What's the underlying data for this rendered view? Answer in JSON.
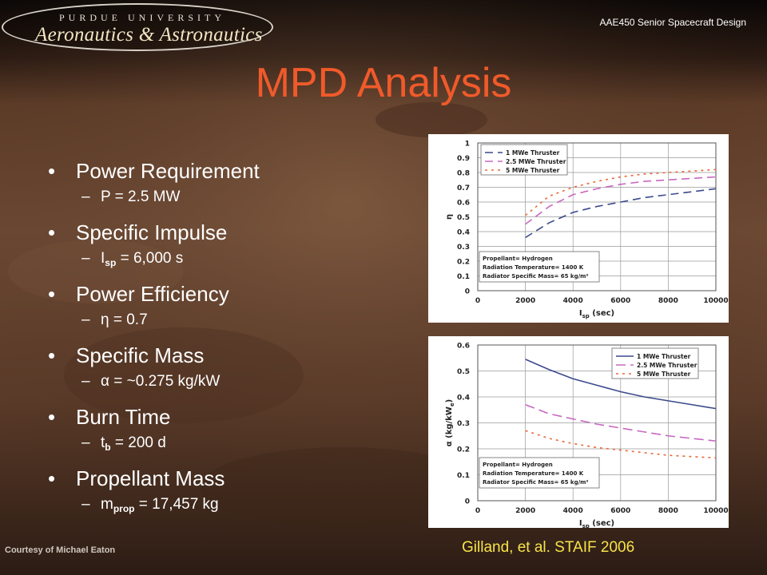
{
  "header": {
    "logo_top": "PURDUE UNIVERSITY",
    "logo_main": "Aeronautics & Astronautics",
    "course": "AAE450 Senior Spacecraft Design"
  },
  "title": "MPD Analysis",
  "bullets": {
    "power_req": "Power Requirement",
    "power_val": "P = 2.5 MW",
    "isp_label": "Specific Impulse",
    "isp_sym": "I",
    "isp_sub": "sp",
    "isp_val": " = 6,000 s",
    "eff_label": "Power Efficiency",
    "eff_val": "η = 0.7",
    "mass_label": "Specific Mass",
    "mass_val": "α = ~0.275 kg/kW",
    "burn_label": "Burn Time",
    "burn_sym": "t",
    "burn_sub": "b",
    "burn_val": " = 200 d",
    "prop_label": "Propellant Mass",
    "prop_sym": "m",
    "prop_sub": "prop",
    "prop_val": " = 17,457 kg"
  },
  "caption": "Gilland, et al. STAIF 2006",
  "courtesy": "Courtesy of Michael Eaton",
  "colors": {
    "title": "#f05a2a",
    "caption": "#f7e34a",
    "s1": "#3c4a8c",
    "s2": "#c868c0",
    "s3": "#e86a38"
  },
  "chart_data": [
    {
      "type": "line",
      "xlabel": "I",
      "xlabel_sub": "sp",
      "xlabel_unit": " (sec)",
      "ylabel": "η",
      "xlim": [
        0,
        10000
      ],
      "ylim": [
        0,
        1
      ],
      "xticks": [
        "0",
        "2000",
        "4000",
        "6000",
        "8000",
        "10000"
      ],
      "yticks": [
        "0",
        "0.1",
        "0.2",
        "0.3",
        "0.4",
        "0.5",
        "0.6",
        "0.7",
        "0.8",
        "0.9",
        "1"
      ],
      "grid": true,
      "legend_position": "top-left",
      "note": [
        "Propellant= Hydrogen",
        "Radiation Temperature= 1400 K",
        "Radiator Specific Mass= 65 kg/m²"
      ],
      "series": [
        {
          "name": "1 MWe Thruster",
          "color": "#3c4a8c",
          "dash": "10,6",
          "x": [
            2000,
            3000,
            4000,
            5000,
            6000,
            7000,
            8000,
            9000,
            10000
          ],
          "y": [
            0.36,
            0.46,
            0.53,
            0.57,
            0.6,
            0.63,
            0.65,
            0.67,
            0.69
          ]
        },
        {
          "name": "2.5 MWe Thruster",
          "color": "#c868c0",
          "dash": "10,6",
          "x": [
            2000,
            3000,
            4000,
            5000,
            6000,
            7000,
            8000,
            9000,
            10000
          ],
          "y": [
            0.45,
            0.57,
            0.65,
            0.69,
            0.72,
            0.74,
            0.75,
            0.76,
            0.77
          ]
        },
        {
          "name": "5 MWe Thruster",
          "color": "#e86a38",
          "dash": "3,5",
          "x": [
            2000,
            3000,
            4000,
            5000,
            6000,
            7000,
            8000,
            9000,
            10000
          ],
          "y": [
            0.51,
            0.64,
            0.7,
            0.74,
            0.77,
            0.79,
            0.8,
            0.81,
            0.82
          ]
        }
      ]
    },
    {
      "type": "line",
      "xlabel": "I",
      "xlabel_sub": "sp",
      "xlabel_unit": " (sec)",
      "ylabel": "α (kg/kW",
      "ylabel_sub": "e",
      "ylabel_end": ")",
      "xlim": [
        0,
        10000
      ],
      "ylim": [
        0,
        0.6
      ],
      "xticks": [
        "0",
        "2000",
        "4000",
        "6000",
        "8000",
        "10000"
      ],
      "yticks": [
        "0",
        "0.1",
        "0.2",
        "0.3",
        "0.4",
        "0.5",
        "0.6"
      ],
      "grid": true,
      "legend_position": "top-right",
      "note": [
        "Propellant= Hydrogen",
        "Radiation Temperature= 1400 K",
        "Radiator Specific Mass= 65 kg/m²"
      ],
      "series": [
        {
          "name": "1 MWe Thruster",
          "color": "#3c4a8c",
          "dash": "",
          "x": [
            2000,
            3000,
            4000,
            5000,
            6000,
            7000,
            8000,
            9000,
            10000
          ],
          "y": [
            0.545,
            0.505,
            0.47,
            0.445,
            0.42,
            0.4,
            0.385,
            0.37,
            0.355
          ]
        },
        {
          "name": "2.5 MWe Thruster",
          "color": "#c868c0",
          "dash": "12,6",
          "x": [
            2000,
            3000,
            4000,
            5000,
            6000,
            7000,
            8000,
            9000,
            10000
          ],
          "y": [
            0.37,
            0.335,
            0.315,
            0.295,
            0.28,
            0.265,
            0.25,
            0.24,
            0.23
          ]
        },
        {
          "name": "5 MWe Thruster",
          "color": "#e86a38",
          "dash": "3,5",
          "x": [
            2000,
            3000,
            4000,
            5000,
            6000,
            7000,
            8000,
            9000,
            10000
          ],
          "y": [
            0.27,
            0.24,
            0.22,
            0.205,
            0.195,
            0.185,
            0.175,
            0.17,
            0.165
          ]
        }
      ]
    }
  ]
}
